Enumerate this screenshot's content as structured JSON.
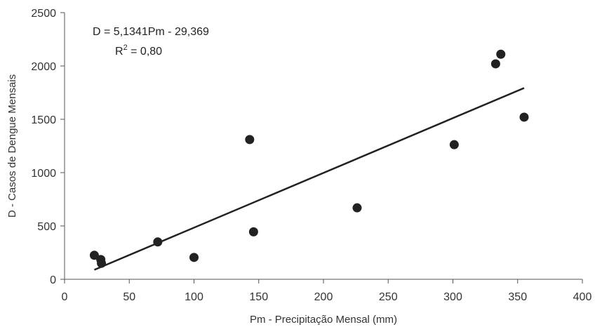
{
  "chart_data": {
    "type": "scatter",
    "xlabel": "Pm - Precipitação Mensal (mm)",
    "ylabel": "D - Casos de Dengue Mensais",
    "xlim": [
      0,
      400
    ],
    "ylim": [
      0,
      2500
    ],
    "x_ticks": [
      "0",
      "50",
      "100",
      "150",
      "200",
      "250",
      "300",
      "350",
      "400"
    ],
    "y_ticks": [
      "0",
      "500",
      "1000",
      "1500",
      "2000",
      "2500"
    ],
    "grid": false,
    "series": [
      {
        "points": [
          {
            "x": 23,
            "y": 225
          },
          {
            "x": 28,
            "y": 185
          },
          {
            "x": 28.5,
            "y": 150
          },
          {
            "x": 72,
            "y": 350
          },
          {
            "x": 100,
            "y": 205
          },
          {
            "x": 143,
            "y": 1310
          },
          {
            "x": 146,
            "y": 445
          },
          {
            "x": 226,
            "y": 670
          },
          {
            "x": 301,
            "y": 1262
          },
          {
            "x": 333,
            "y": 2020
          },
          {
            "x": 337,
            "y": 2110
          },
          {
            "x": 355,
            "y": 1520
          }
        ],
        "color": "#222222"
      }
    ],
    "trendline": {
      "slope": 5.1341,
      "intercept": -29.369,
      "x_range": [
        23,
        355
      ],
      "color": "#222222"
    },
    "annotations": {
      "equation": "D = 5,1341Pm - 29,369",
      "r2_label": "R",
      "r2_sup": "2",
      "r2_value": " = 0,80"
    }
  }
}
